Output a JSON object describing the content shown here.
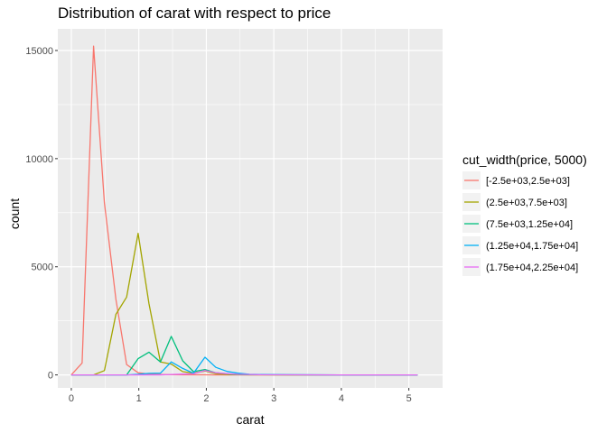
{
  "chart_data": {
    "type": "line",
    "title": "Distribution of carat with respect to price",
    "xlabel": "carat",
    "ylabel": "count",
    "xlim": [
      -0.2,
      5.5
    ],
    "ylim": [
      -600,
      16000
    ],
    "xticks": [
      0,
      1,
      2,
      3,
      4,
      5
    ],
    "yticks": [
      0,
      5000,
      10000,
      15000
    ],
    "ytick_labels": [
      "0",
      "5000",
      "10000",
      "15000"
    ],
    "grid": true,
    "legend": {
      "title": "cut_width(price, 5000)",
      "placement": "right"
    },
    "series": [
      {
        "name": "[-2.5e+03,2.5e+03]",
        "color": "#F8766D",
        "x": [
          0,
          0.16,
          0.33,
          0.49,
          0.66,
          0.82,
          0.99,
          1.15,
          1.32,
          1.48,
          1.65,
          1.81,
          1.98,
          2.14,
          2.31,
          2.47,
          2.64,
          2.8,
          3.3,
          4,
          5.13
        ],
        "y": [
          0,
          550,
          15200,
          7950,
          3500,
          480,
          100,
          40,
          20,
          10,
          5,
          5,
          5,
          0,
          0,
          0,
          0,
          0,
          0,
          0,
          0
        ]
      },
      {
        "name": "(2.5e+03,7.5e+03]",
        "color": "#A3A500",
        "x": [
          0,
          0.16,
          0.33,
          0.49,
          0.66,
          0.82,
          0.99,
          1.15,
          1.32,
          1.48,
          1.65,
          1.81,
          1.98,
          2.14,
          2.31,
          2.47,
          2.64,
          2.8,
          3.3,
          4,
          5.13
        ],
        "y": [
          0,
          0,
          0,
          200,
          2800,
          3600,
          6550,
          3300,
          600,
          500,
          150,
          80,
          180,
          60,
          20,
          10,
          5,
          5,
          0,
          0,
          0
        ]
      },
      {
        "name": "(7.5e+03,1.25e+04]",
        "color": "#00BF7D",
        "x": [
          0,
          0.16,
          0.33,
          0.49,
          0.66,
          0.82,
          0.99,
          1.15,
          1.32,
          1.48,
          1.65,
          1.81,
          1.98,
          2.14,
          2.31,
          2.47,
          2.64,
          2.8,
          3.3,
          4,
          5.13
        ],
        "y": [
          0,
          0,
          0,
          0,
          0,
          0,
          750,
          1050,
          600,
          1780,
          650,
          150,
          250,
          100,
          50,
          20,
          10,
          10,
          5,
          0,
          0
        ]
      },
      {
        "name": "(1.25e+04,1.75e+04]",
        "color": "#00B0F6",
        "x": [
          0,
          0.16,
          0.33,
          0.49,
          0.66,
          0.82,
          0.99,
          1.15,
          1.32,
          1.48,
          1.65,
          1.81,
          1.98,
          2.14,
          2.31,
          2.47,
          2.64,
          2.8,
          3.3,
          4,
          5.13
        ],
        "y": [
          0,
          0,
          0,
          0,
          0,
          0,
          30,
          70,
          80,
          600,
          300,
          80,
          820,
          350,
          160,
          80,
          30,
          20,
          10,
          0,
          0
        ]
      },
      {
        "name": "(1.75e+04,2.25e+04]",
        "color": "#E76BF3",
        "x": [
          0,
          0.16,
          0.33,
          0.49,
          0.66,
          0.82,
          0.99,
          1.15,
          1.32,
          1.48,
          1.65,
          1.81,
          1.98,
          2.14,
          2.31,
          2.47,
          2.64,
          2.8,
          3.3,
          4,
          5.13
        ],
        "y": [
          0,
          0,
          0,
          0,
          0,
          0,
          0,
          0,
          0,
          20,
          40,
          50,
          200,
          100,
          60,
          30,
          20,
          10,
          5,
          0,
          0
        ]
      }
    ]
  }
}
